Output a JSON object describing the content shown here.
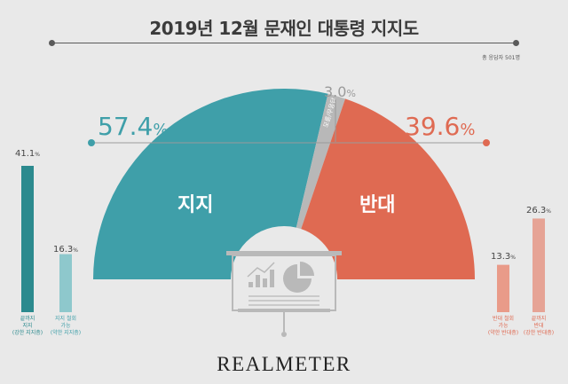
{
  "title": "2019년 12월 문재인 대통령 지지도",
  "respondents": "총 응답자 501명",
  "brand": "REALMETER",
  "colors": {
    "support": "#3f9fa9",
    "oppose": "#df6a52",
    "undecided": "#b8b8b8",
    "strong_support_bar": "#2c8a8e",
    "soft_support_bar": "#8ec8cc",
    "soft_oppose_bar": "#e99b89",
    "strong_oppose_bar": "#e6a395",
    "center_icon": "#b9b9b9"
  },
  "chart_data": [
    {
      "type": "pie",
      "shape": "half-donut",
      "title": "2019년 12월 문재인 대통령 지지도",
      "categories": [
        "지지",
        "모름/무응답",
        "반대"
      ],
      "values": [
        57.4,
        3.0,
        39.6
      ],
      "labels": {
        "support": {
          "text": "지지",
          "value": "57.4",
          "unit": "%"
        },
        "undecided": {
          "text": "모름/무응답",
          "value": "3.0",
          "unit": "%"
        },
        "oppose": {
          "text": "반대",
          "value": "39.6",
          "unit": "%"
        }
      }
    },
    {
      "type": "bar",
      "categories": [
        "끝까지 지지 (강한 지지층)",
        "지지 철회 가능 (약한 지지층)"
      ],
      "values": [
        41.1,
        16.3
      ],
      "value_texts": [
        "41.1",
        "16.3"
      ],
      "unit": "%",
      "label_lines": [
        [
          "끝까지",
          "지지",
          "(강한 지지층)"
        ],
        [
          "지지 철회",
          "가능",
          "(약한 지지층)"
        ]
      ]
    },
    {
      "type": "bar",
      "categories": [
        "반대 철회 가능 (약한 반대층)",
        "끝까지 반대 (강한 반대층)"
      ],
      "values": [
        13.3,
        26.3
      ],
      "value_texts": [
        "13.3",
        "26.3"
      ],
      "unit": "%",
      "label_lines": [
        [
          "반대 철회",
          "가능",
          "(약한 반대층)"
        ],
        [
          "끝까지",
          "반대",
          "(강한 반대층)"
        ]
      ]
    }
  ]
}
